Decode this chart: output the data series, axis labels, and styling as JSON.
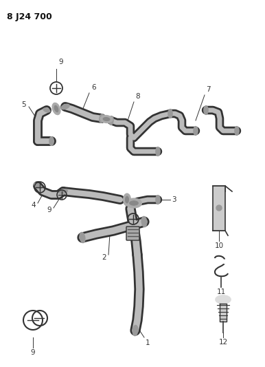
{
  "title": "8 J24 700",
  "bg_color": "#ffffff",
  "line_color": "#333333",
  "title_fontsize": 9,
  "label_fontsize": 7.5,
  "fig_width": 3.86,
  "fig_height": 5.33,
  "dpi": 100
}
